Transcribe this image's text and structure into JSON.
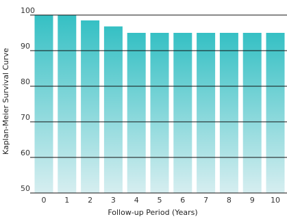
{
  "chart_data": {
    "type": "bar",
    "categories": [
      "0",
      "1",
      "2",
      "3",
      "4",
      "5",
      "6",
      "7",
      "8",
      "9",
      "10"
    ],
    "values": [
      100,
      100,
      98.5,
      96.8,
      95,
      95,
      95,
      95,
      95,
      95,
      95
    ],
    "title": "",
    "xlabel": "Follow-up Period (Years)",
    "ylabel": "Kaplan-Meier Survival Curve",
    "ylim": [
      50,
      100
    ],
    "yticks": [
      "50",
      "60",
      "70",
      "80",
      "90",
      "100"
    ],
    "grid": "horizontal",
    "legend": "none",
    "bar_gradient": {
      "top": "#35c0c4",
      "bottom": "#d6eef0"
    },
    "grid_color": "#111111"
  }
}
